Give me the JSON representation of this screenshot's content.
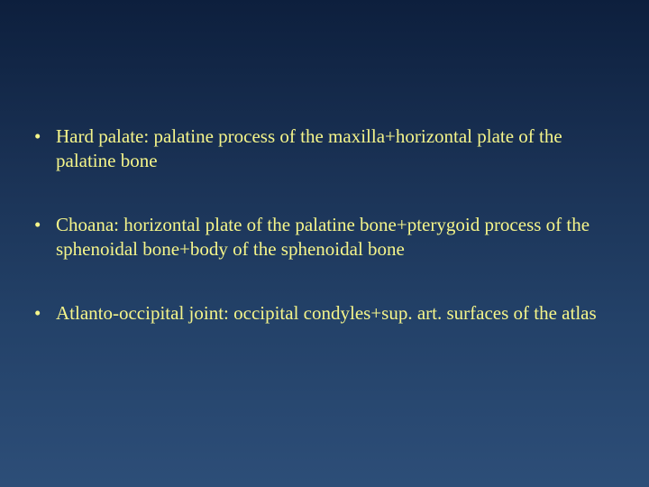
{
  "slide": {
    "background_gradient_top": "#0d1f3d",
    "background_gradient_bottom": "#2d4e78",
    "text_color": "#f5f58a",
    "font_family": "Times New Roman",
    "font_size_pt": 16,
    "bullet_char": "•",
    "bullets": [
      {
        "text": "Hard palate: palatine process of the maxilla+horizontal plate of the palatine bone"
      },
      {
        "text": "Choana: horizontal plate of the palatine bone+pterygoid process of the sphenoidal bone+body of the sphenoidal bone"
      },
      {
        "text": "Atlanto-occipital joint: occipital condyles+sup. art. surfaces of the atlas"
      }
    ]
  }
}
